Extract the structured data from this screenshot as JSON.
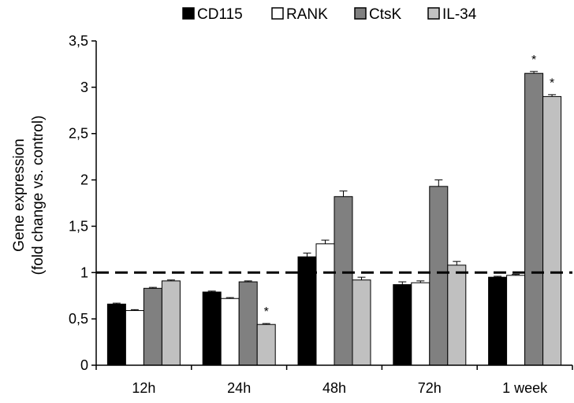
{
  "chart_data": {
    "type": "bar",
    "categories": [
      "12h",
      "24h",
      "48h",
      "72h",
      "1 week"
    ],
    "ylabel_line1": "Gene expression",
    "ylabel_line2": "(fold change vs. control)",
    "ylim": [
      0,
      3.5
    ],
    "yticks": [
      "0",
      "0,5",
      "1",
      "1,5",
      "2",
      "2,5",
      "3",
      "3,5"
    ],
    "ytick_values": [
      0,
      0.5,
      1,
      1.5,
      2,
      2.5,
      3,
      3.5
    ],
    "reference_line": 1,
    "legend_position": "top",
    "grid": false,
    "series": [
      {
        "name": "CD115",
        "color": "#000000",
        "values": [
          0.66,
          0.79,
          1.17,
          0.87,
          0.95
        ],
        "errors": [
          0.01,
          0.01,
          0.04,
          0.03,
          0.01
        ],
        "sig": [
          "",
          "",
          "",
          "",
          ""
        ]
      },
      {
        "name": "RANK",
        "color": "#ffffff",
        "values": [
          0.59,
          0.72,
          1.31,
          0.89,
          0.97
        ],
        "errors": [
          0.01,
          0.01,
          0.04,
          0.02,
          0.01
        ],
        "sig": [
          "",
          "",
          "",
          "",
          ""
        ]
      },
      {
        "name": "CtsK",
        "color": "#808080",
        "values": [
          0.83,
          0.9,
          1.82,
          1.93,
          3.15
        ],
        "errors": [
          0.01,
          0.01,
          0.06,
          0.07,
          0.02
        ],
        "sig": [
          "",
          "",
          "",
          "",
          "*"
        ]
      },
      {
        "name": "IL-34",
        "color": "#c0c0c0",
        "values": [
          0.91,
          0.44,
          0.92,
          1.08,
          2.9
        ],
        "errors": [
          0.01,
          0.01,
          0.03,
          0.04,
          0.02
        ],
        "sig": [
          "",
          "*",
          "",
          "",
          "*"
        ]
      }
    ]
  }
}
